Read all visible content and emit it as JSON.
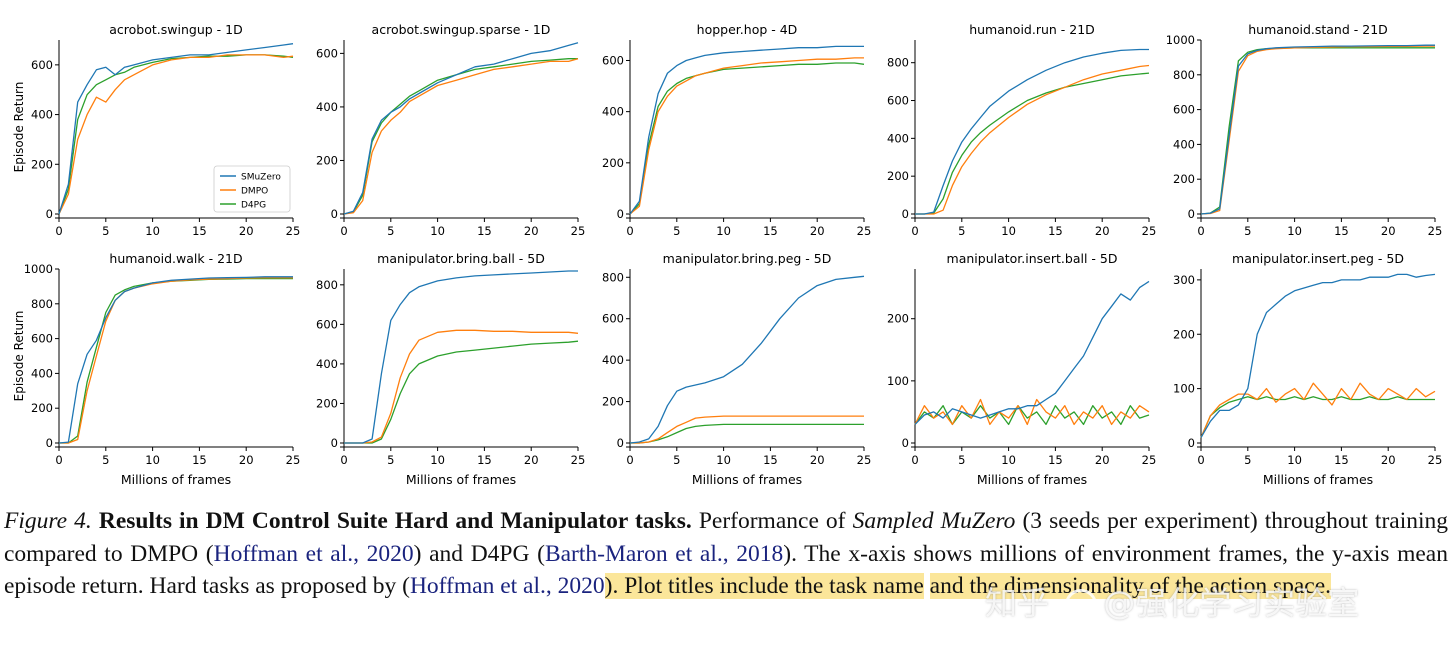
{
  "colors": {
    "SMuZero": "#1f77b4",
    "DMPO": "#ff7f0e",
    "D4PG": "#2ca02c",
    "axis": "#000000",
    "highlight": "#fbe69a",
    "cite": "#1a237e"
  },
  "legend": [
    "SMuZero",
    "DMPO",
    "D4PG"
  ],
  "chart_data": [
    {
      "type": "line",
      "title": "acrobot.swingup - 1D",
      "xlabel": "",
      "ylabel": "Episode Return",
      "xlim": [
        0,
        25
      ],
      "ylim": [
        0,
        700
      ],
      "xticks": [
        0,
        5,
        10,
        15,
        20,
        25
      ],
      "yticks": [
        0,
        200,
        400,
        600
      ],
      "legend": "lower-right",
      "x": [
        0,
        1,
        2,
        3,
        4,
        5,
        6,
        7,
        8,
        10,
        12,
        14,
        16,
        18,
        20,
        22,
        24,
        25
      ],
      "series": [
        {
          "name": "SMuZero",
          "values": [
            0,
            120,
            450,
            520,
            580,
            590,
            560,
            590,
            600,
            620,
            630,
            640,
            640,
            650,
            660,
            670,
            680,
            685
          ]
        },
        {
          "name": "DMPO",
          "values": [
            0,
            80,
            300,
            400,
            470,
            450,
            500,
            540,
            560,
            600,
            620,
            630,
            630,
            640,
            640,
            640,
            630,
            635
          ]
        },
        {
          "name": "D4PG",
          "values": [
            0,
            100,
            380,
            480,
            520,
            540,
            560,
            570,
            590,
            610,
            625,
            630,
            635,
            635,
            640,
            640,
            635,
            630
          ]
        }
      ]
    },
    {
      "type": "line",
      "title": "acrobot.swingup.sparse - 1D",
      "xlabel": "",
      "ylabel": "",
      "xlim": [
        0,
        25
      ],
      "ylim": [
        0,
        650
      ],
      "xticks": [
        0,
        5,
        10,
        15,
        20,
        25
      ],
      "yticks": [
        0,
        200,
        400,
        600
      ],
      "x": [
        0,
        1,
        2,
        3,
        4,
        5,
        6,
        7,
        8,
        10,
        12,
        14,
        16,
        18,
        20,
        22,
        24,
        25
      ],
      "series": [
        {
          "name": "SMuZero",
          "values": [
            0,
            10,
            80,
            280,
            350,
            380,
            400,
            430,
            450,
            490,
            520,
            550,
            560,
            580,
            600,
            610,
            630,
            640
          ]
        },
        {
          "name": "DMPO",
          "values": [
            0,
            5,
            50,
            230,
            310,
            350,
            380,
            420,
            440,
            480,
            500,
            520,
            540,
            550,
            560,
            570,
            570,
            580
          ]
        },
        {
          "name": "D4PG",
          "values": [
            0,
            8,
            70,
            270,
            340,
            380,
            410,
            440,
            460,
            500,
            520,
            540,
            550,
            560,
            570,
            575,
            580,
            580
          ]
        }
      ]
    },
    {
      "type": "line",
      "title": "hopper.hop - 4D",
      "xlabel": "",
      "ylabel": "",
      "xlim": [
        0,
        25
      ],
      "ylim": [
        0,
        680
      ],
      "xticks": [
        0,
        5,
        10,
        15,
        20,
        25
      ],
      "yticks": [
        0,
        200,
        400,
        600
      ],
      "x": [
        0,
        1,
        2,
        3,
        4,
        5,
        6,
        7,
        8,
        10,
        12,
        14,
        16,
        18,
        20,
        22,
        24,
        25
      ],
      "series": [
        {
          "name": "SMuZero",
          "values": [
            0,
            50,
            300,
            470,
            550,
            580,
            600,
            610,
            620,
            630,
            635,
            640,
            645,
            650,
            650,
            655,
            655,
            655
          ]
        },
        {
          "name": "DMPO",
          "values": [
            0,
            30,
            250,
            400,
            460,
            500,
            520,
            540,
            550,
            570,
            580,
            590,
            595,
            600,
            605,
            605,
            610,
            610
          ]
        },
        {
          "name": "D4PG",
          "values": [
            0,
            40,
            270,
            420,
            480,
            510,
            530,
            540,
            550,
            565,
            570,
            575,
            580,
            585,
            585,
            590,
            590,
            585
          ]
        }
      ]
    },
    {
      "type": "line",
      "title": "humanoid.run - 21D",
      "xlabel": "",
      "ylabel": "",
      "xlim": [
        0,
        25
      ],
      "ylim": [
        0,
        920
      ],
      "xticks": [
        0,
        5,
        10,
        15,
        20,
        25
      ],
      "yticks": [
        0,
        200,
        400,
        600,
        800
      ],
      "x": [
        0,
        1,
        2,
        3,
        4,
        5,
        6,
        7,
        8,
        10,
        12,
        14,
        16,
        18,
        20,
        22,
        24,
        25
      ],
      "series": [
        {
          "name": "SMuZero",
          "values": [
            0,
            0,
            10,
            150,
            280,
            380,
            450,
            510,
            570,
            650,
            710,
            760,
            800,
            830,
            850,
            865,
            870,
            870
          ]
        },
        {
          "name": "DMPO",
          "values": [
            0,
            0,
            0,
            20,
            150,
            250,
            320,
            380,
            430,
            510,
            580,
            630,
            670,
            710,
            740,
            760,
            780,
            785
          ]
        },
        {
          "name": "D4PG",
          "values": [
            0,
            0,
            5,
            80,
            220,
            310,
            380,
            430,
            470,
            540,
            600,
            640,
            670,
            690,
            710,
            730,
            740,
            745
          ]
        }
      ]
    },
    {
      "type": "line",
      "title": "humanoid.stand - 21D",
      "xlabel": "",
      "ylabel": "",
      "xlim": [
        0,
        25
      ],
      "ylim": [
        0,
        1000
      ],
      "xticks": [
        0,
        5,
        10,
        15,
        20,
        25
      ],
      "yticks": [
        0,
        200,
        400,
        600,
        800,
        1000
      ],
      "x": [
        0,
        1,
        2,
        3,
        4,
        5,
        6,
        7,
        8,
        10,
        12,
        14,
        16,
        18,
        20,
        22,
        24,
        25
      ],
      "series": [
        {
          "name": "SMuZero",
          "values": [
            0,
            5,
            30,
            450,
            850,
            920,
            940,
            950,
            955,
            960,
            962,
            965,
            965,
            966,
            968,
            968,
            970,
            970
          ]
        },
        {
          "name": "DMPO",
          "values": [
            0,
            3,
            20,
            420,
            820,
            910,
            935,
            945,
            950,
            955,
            958,
            960,
            962,
            962,
            963,
            963,
            965,
            965
          ]
        },
        {
          "name": "D4PG",
          "values": [
            0,
            5,
            40,
            500,
            880,
            930,
            945,
            950,
            952,
            955,
            955,
            955,
            955,
            955,
            955,
            955,
            955,
            955
          ]
        }
      ]
    },
    {
      "type": "line",
      "title": "humanoid.walk - 21D",
      "xlabel": "Millions of frames",
      "ylabel": "Episode Return",
      "xlim": [
        0,
        25
      ],
      "ylim": [
        0,
        1000
      ],
      "xticks": [
        0,
        5,
        10,
        15,
        20,
        25
      ],
      "yticks": [
        0,
        200,
        400,
        600,
        800,
        1000
      ],
      "x": [
        0,
        1,
        2,
        3,
        4,
        5,
        6,
        7,
        8,
        10,
        12,
        14,
        16,
        18,
        20,
        22,
        24,
        25
      ],
      "series": [
        {
          "name": "SMuZero",
          "values": [
            0,
            5,
            340,
            510,
            590,
            720,
            820,
            870,
            890,
            920,
            935,
            942,
            948,
            950,
            952,
            955,
            955,
            955
          ]
        },
        {
          "name": "DMPO",
          "values": [
            0,
            0,
            20,
            300,
            500,
            700,
            820,
            870,
            890,
            915,
            930,
            938,
            942,
            945,
            948,
            950,
            950,
            950
          ]
        },
        {
          "name": "D4PG",
          "values": [
            0,
            0,
            40,
            350,
            550,
            750,
            850,
            880,
            900,
            920,
            930,
            935,
            940,
            942,
            945,
            945,
            945,
            945
          ]
        }
      ]
    },
    {
      "type": "line",
      "title": "manipulator.bring.ball - 5D",
      "xlabel": "Millions of frames",
      "ylabel": "",
      "xlim": [
        0,
        25
      ],
      "ylim": [
        0,
        880
      ],
      "xticks": [
        0,
        5,
        10,
        15,
        20,
        25
      ],
      "yticks": [
        0,
        200,
        400,
        600,
        800
      ],
      "x": [
        0,
        1,
        2,
        3,
        4,
        5,
        6,
        7,
        8,
        10,
        12,
        14,
        16,
        18,
        20,
        22,
        24,
        25
      ],
      "series": [
        {
          "name": "SMuZero",
          "values": [
            0,
            0,
            0,
            20,
            350,
            620,
            700,
            760,
            790,
            820,
            835,
            845,
            850,
            855,
            860,
            865,
            870,
            870
          ]
        },
        {
          "name": "DMPO",
          "values": [
            0,
            0,
            0,
            5,
            30,
            150,
            330,
            450,
            520,
            560,
            570,
            570,
            565,
            565,
            560,
            560,
            560,
            555
          ]
        },
        {
          "name": "D4PG",
          "values": [
            0,
            0,
            0,
            0,
            20,
            120,
            250,
            350,
            400,
            440,
            460,
            470,
            480,
            490,
            500,
            505,
            510,
            515
          ]
        }
      ]
    },
    {
      "type": "line",
      "title": "manipulator.bring.peg - 5D",
      "xlabel": "Millions of frames",
      "ylabel": "",
      "xlim": [
        0,
        25
      ],
      "ylim": [
        0,
        840
      ],
      "xticks": [
        0,
        5,
        10,
        15,
        20,
        25
      ],
      "yticks": [
        0,
        200,
        400,
        600,
        800
      ],
      "x": [
        0,
        1,
        2,
        3,
        4,
        5,
        6,
        7,
        8,
        10,
        12,
        14,
        16,
        18,
        20,
        22,
        24,
        25
      ],
      "series": [
        {
          "name": "SMuZero",
          "values": [
            0,
            5,
            20,
            80,
            180,
            250,
            270,
            280,
            290,
            320,
            380,
            480,
            600,
            700,
            760,
            790,
            800,
            805
          ]
        },
        {
          "name": "DMPO",
          "values": [
            0,
            0,
            5,
            20,
            50,
            80,
            100,
            120,
            125,
            130,
            130,
            130,
            130,
            130,
            130,
            130,
            130,
            130
          ]
        },
        {
          "name": "D4PG",
          "values": [
            0,
            0,
            5,
            15,
            30,
            50,
            70,
            80,
            85,
            90,
            90,
            90,
            90,
            90,
            90,
            90,
            90,
            90
          ]
        }
      ]
    },
    {
      "type": "line",
      "title": "manipulator.insert.ball - 5D",
      "xlabel": "Millions of frames",
      "ylabel": "",
      "xlim": [
        0,
        25
      ],
      "ylim": [
        0,
        280
      ],
      "xticks": [
        0,
        5,
        10,
        15,
        20,
        25
      ],
      "yticks": [
        0,
        100,
        200
      ],
      "x": [
        0,
        1,
        2,
        3,
        4,
        5,
        6,
        7,
        8,
        9,
        10,
        11,
        12,
        13,
        14,
        15,
        16,
        17,
        18,
        19,
        20,
        21,
        22,
        23,
        24,
        25
      ],
      "series": [
        {
          "name": "SMuZero",
          "values": [
            30,
            45,
            50,
            40,
            55,
            50,
            45,
            40,
            45,
            50,
            55,
            55,
            60,
            60,
            70,
            80,
            100,
            120,
            140,
            170,
            200,
            220,
            240,
            230,
            250,
            260
          ]
        },
        {
          "name": "DMPO",
          "values": [
            30,
            60,
            40,
            50,
            30,
            60,
            40,
            70,
            30,
            50,
            40,
            60,
            30,
            70,
            50,
            40,
            60,
            30,
            50,
            40,
            60,
            30,
            50,
            40,
            60,
            50
          ]
        },
        {
          "name": "D4PG",
          "values": [
            30,
            50,
            40,
            60,
            30,
            50,
            40,
            60,
            40,
            50,
            30,
            60,
            40,
            50,
            30,
            60,
            40,
            50,
            30,
            60,
            40,
            50,
            30,
            60,
            40,
            45
          ]
        }
      ]
    },
    {
      "type": "line",
      "title": "manipulator.insert.peg - 5D",
      "xlabel": "Millions of frames",
      "ylabel": "",
      "xlim": [
        0,
        25
      ],
      "ylim": [
        0,
        320
      ],
      "xticks": [
        0,
        5,
        10,
        15,
        20,
        25
      ],
      "yticks": [
        0,
        100,
        200,
        300
      ],
      "x": [
        0,
        1,
        2,
        3,
        4,
        5,
        6,
        7,
        8,
        9,
        10,
        11,
        12,
        13,
        14,
        15,
        16,
        17,
        18,
        19,
        20,
        21,
        22,
        23,
        24,
        25
      ],
      "series": [
        {
          "name": "SMuZero",
          "values": [
            10,
            40,
            60,
            60,
            70,
            100,
            200,
            240,
            255,
            270,
            280,
            285,
            290,
            295,
            295,
            300,
            300,
            300,
            305,
            305,
            305,
            310,
            310,
            305,
            308,
            310
          ]
        },
        {
          "name": "DMPO",
          "values": [
            10,
            50,
            70,
            80,
            90,
            90,
            80,
            100,
            75,
            90,
            100,
            80,
            110,
            90,
            70,
            100,
            80,
            110,
            90,
            80,
            100,
            90,
            80,
            100,
            85,
            95
          ]
        },
        {
          "name": "D4PG",
          "values": [
            10,
            50,
            65,
            75,
            80,
            85,
            80,
            85,
            80,
            80,
            85,
            80,
            85,
            80,
            80,
            85,
            80,
            80,
            85,
            80,
            80,
            85,
            80,
            80,
            80,
            80
          ]
        }
      ]
    }
  ],
  "caption": {
    "label": "Figure 4.",
    "bold": "Results in DM Control Suite Hard and Manipulator tasks.",
    "t1": "Performance of",
    "italic": "Sampled MuZero",
    "t2": "(3 seeds per experiment) throughout training compared to DMPO (",
    "cite1": "Hoffman et al., 2020",
    "t3": ") and D4PG (",
    "cite2": "Barth-Maron et al., 2018",
    "t4": "). The x-axis shows millions of environment frames, the y-axis mean episode return. Hard tasks as proposed by (",
    "cite3": "Hoffman et al., 2020",
    "t5": "). Plot titles include the task name",
    "t6": "and the dimensionality of the action space."
  },
  "watermark": {
    "site": "知乎",
    "handle": "@强化学习实验室"
  }
}
